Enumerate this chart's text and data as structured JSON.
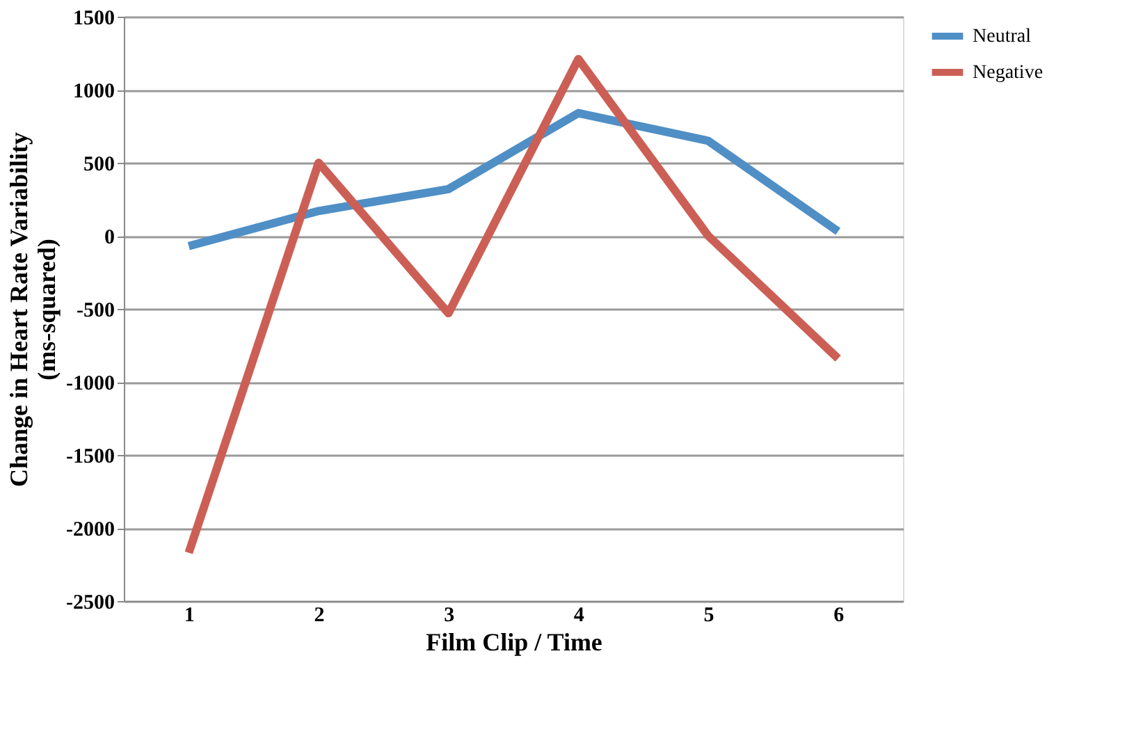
{
  "chart_data": {
    "type": "line",
    "xlabel": "Film Clip / Time",
    "ylabel": "Change in Heart Rate Variability (ms-squared)",
    "categories": [
      "1",
      "2",
      "3",
      "4",
      "5",
      "6"
    ],
    "series": [
      {
        "name": "Neutral",
        "color": "#4f8fc6",
        "values": [
          -70,
          170,
          320,
          840,
          650,
          30
        ]
      },
      {
        "name": "Negative",
        "color": "#cc5f55",
        "values": [
          -2170,
          500,
          -530,
          1210,
          0,
          -840
        ]
      }
    ],
    "ylim": [
      -2500,
      1500
    ],
    "yticks": [
      -2500,
      -2000,
      -1500,
      -1000,
      -500,
      0,
      500,
      1000,
      1500
    ],
    "grid": "y",
    "legend": "right",
    "marker": "none",
    "line_style": "solid"
  }
}
